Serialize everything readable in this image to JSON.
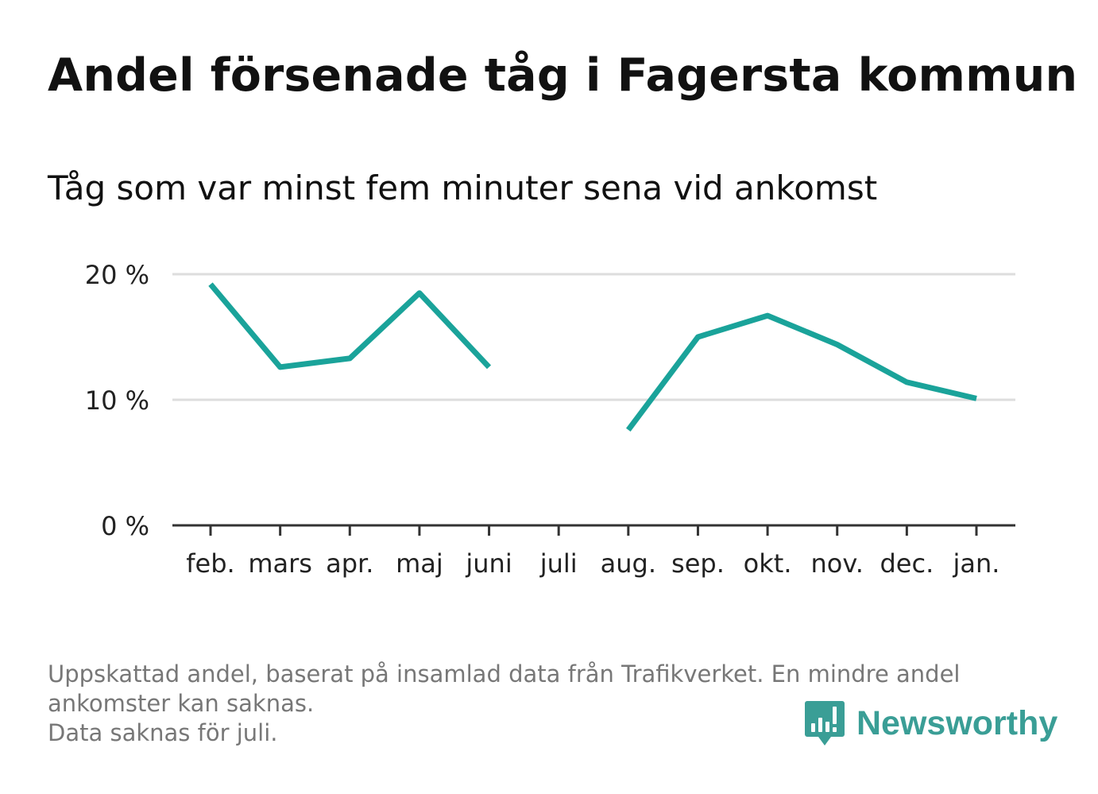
{
  "title": "Andel försenade tåg i Fagersta kommun",
  "subtitle": "Tåg som var minst fem minuter sena vid ankomst",
  "footnote": {
    "line1": "Uppskattad andel, baserat på insamlad data från Trafikverket. En mindre andel",
    "line2": "ankomster kan saknas.",
    "line3": "Data saknas för juli."
  },
  "brand": {
    "name": "Newsworthy",
    "color": "#3a9e96"
  },
  "colors": {
    "line": "#1aa39a",
    "grid": "#dddddd",
    "axis": "#333333",
    "text": "#222222"
  },
  "chart_data": {
    "type": "line",
    "categories": [
      "feb.",
      "mars",
      "apr.",
      "maj",
      "juni",
      "juli",
      "aug.",
      "sep.",
      "okt.",
      "nov.",
      "dec.",
      "jan."
    ],
    "series": [
      {
        "values": [
          19.2,
          12.6,
          13.3,
          18.5,
          12.6,
          null,
          7.6,
          15.0,
          16.7,
          14.4,
          11.4,
          10.1
        ]
      }
    ],
    "yticks": [
      "0 %",
      "10 %",
      "20 %"
    ],
    "ytick_values": [
      0,
      10,
      20
    ],
    "ylim": [
      0,
      20
    ],
    "grid": true
  }
}
